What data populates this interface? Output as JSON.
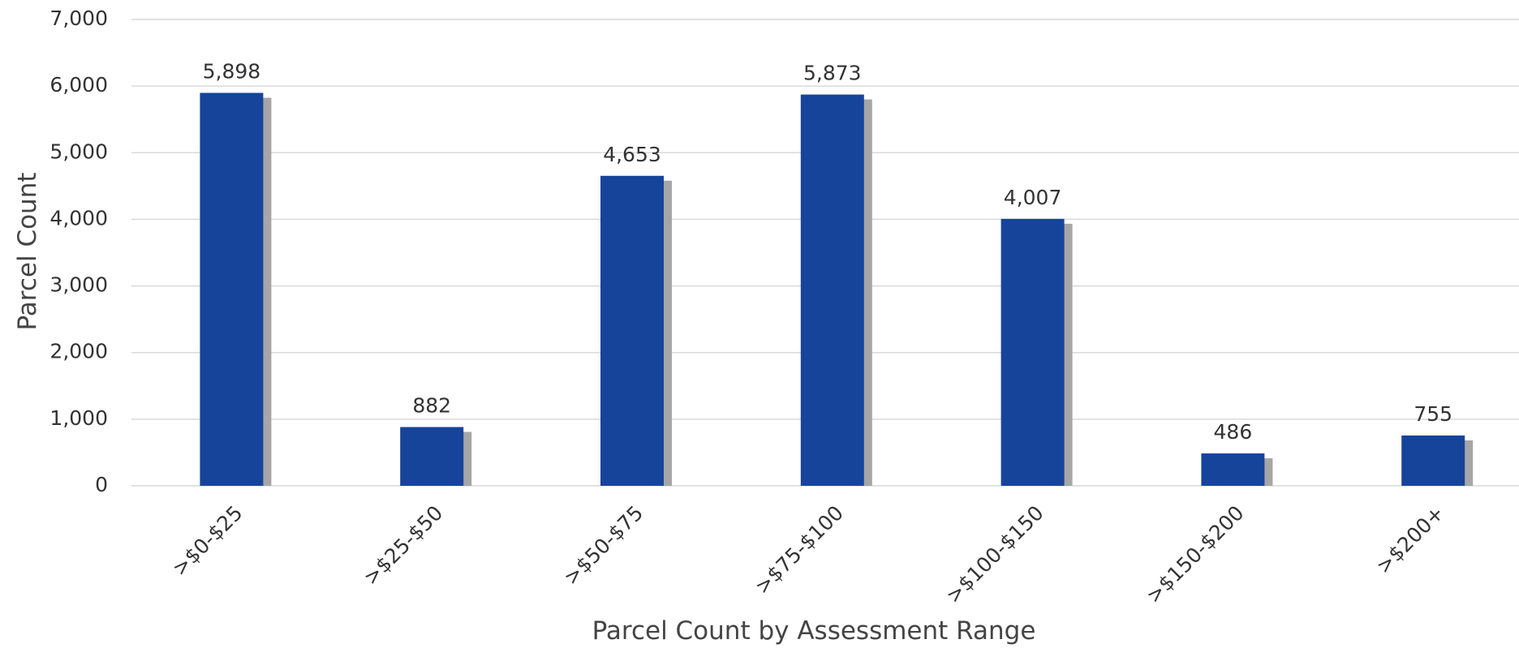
{
  "chart_data": {
    "type": "bar",
    "x_label": "Parcel Count by Assessment Range",
    "y_label": "Parcel Count",
    "categories": [
      ">$0-$25",
      ">$25-$50",
      ">$50-$75",
      ">$75-$100",
      ">$100-$150",
      ">$150-$200",
      ">$200+"
    ],
    "values": [
      5898,
      882,
      4653,
      5873,
      4007,
      486,
      755
    ],
    "value_labels": [
      "5,898",
      "882",
      "4,653",
      "5,873",
      "4,007",
      "486",
      "755"
    ],
    "color": "#17449b",
    "ylim": [
      0,
      7000
    ],
    "yticks": [
      0,
      {
        "value": 1000,
        "label": "1,000"
      },
      {
        "value": 2000,
        "label": "2,000"
      },
      {
        "value": 3000,
        "label": "3,000"
      },
      {
        "value": 4000,
        "label": "4,000"
      },
      {
        "value": 5000,
        "label": "5,000"
      },
      {
        "value": 6000,
        "label": "6,000"
      },
      {
        "value": 7000,
        "label": "7,000"
      }
    ],
    "grid": true
  }
}
